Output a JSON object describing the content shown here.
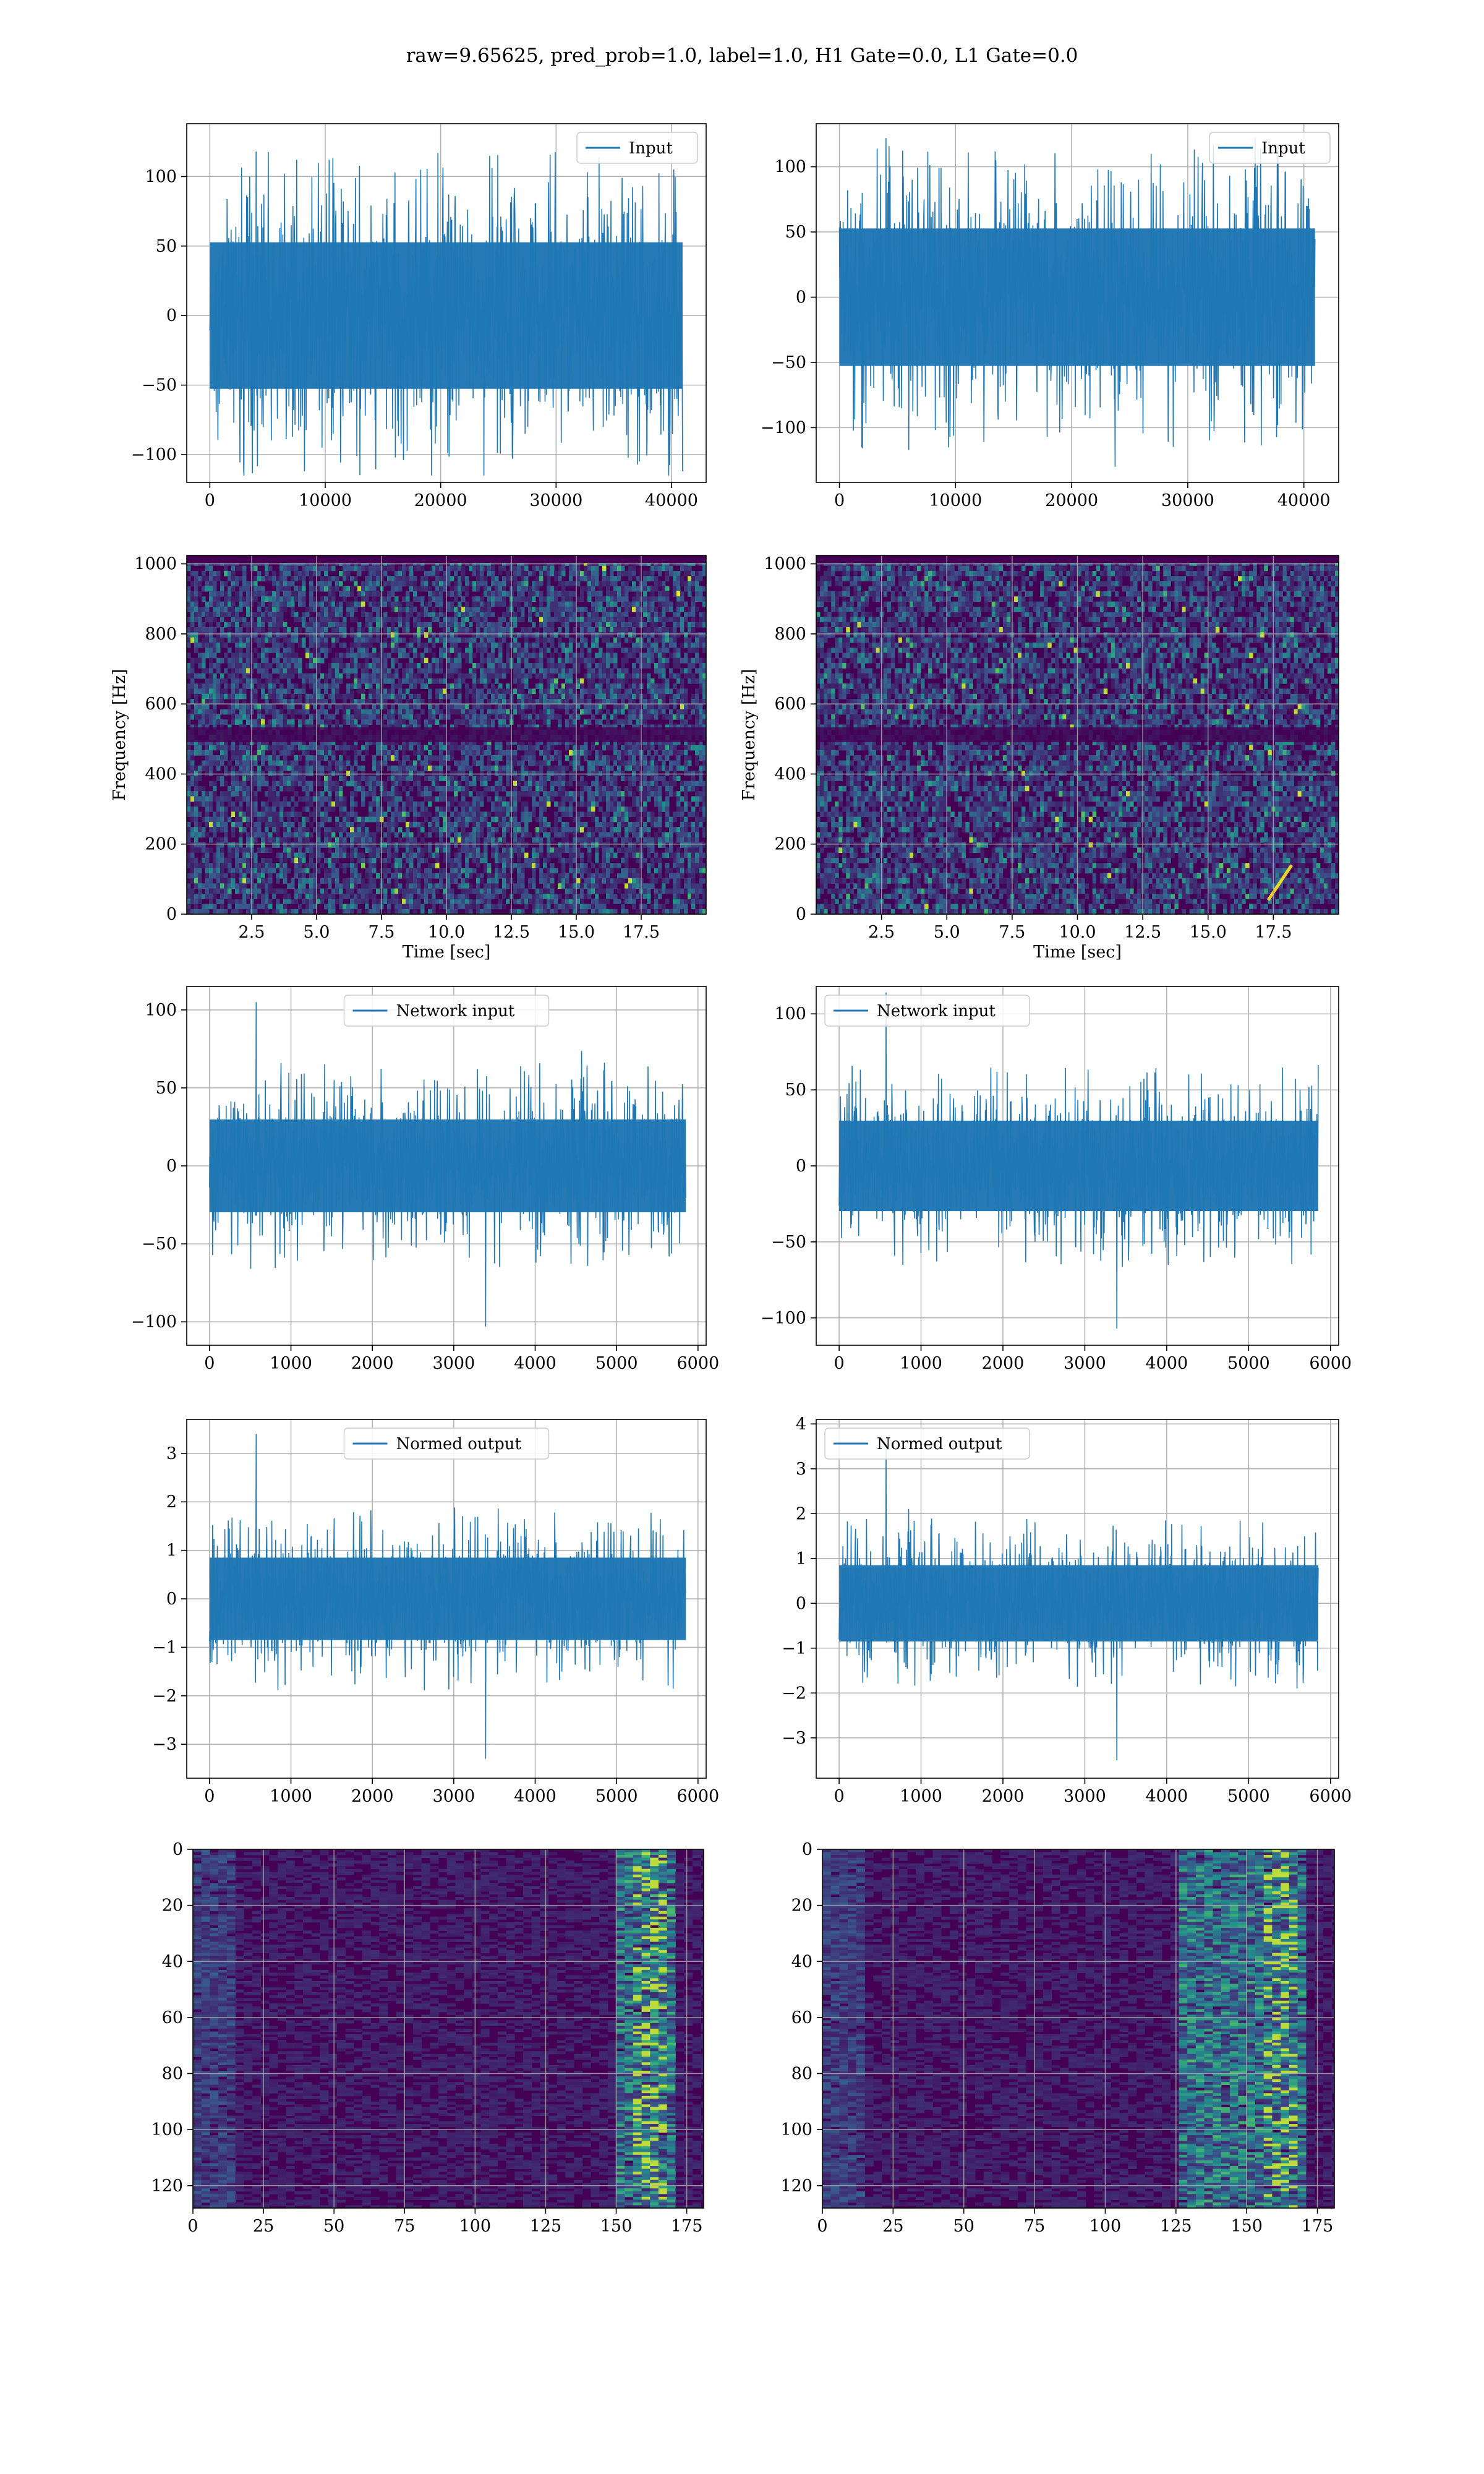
{
  "figure_title": "raw=9.65625, pred_prob=1.0, label=1.0, H1 Gate=0.0, L1 Gate=0.0",
  "colors": {
    "line": "#1f77b4",
    "heat_low": "#440154",
    "heat_mid": "#21918c",
    "heat_high": "#fde725",
    "grid": "#b0b0b0"
  },
  "chart_data": [
    {
      "type": "line",
      "legend": "Input",
      "legend_loc": "upper right",
      "xlim": [
        -2000,
        43000
      ],
      "ylim": [
        -120,
        138
      ],
      "xticks": [
        0,
        10000,
        20000,
        30000,
        40000
      ],
      "yticks": [
        -100,
        -50,
        0,
        50,
        100
      ],
      "signal": {
        "x_range": [
          0,
          40960
        ],
        "core_amplitude": 62,
        "peak_max": 118,
        "peak_min": -115
      },
      "grid": true,
      "xlabel": "",
      "ylabel": ""
    },
    {
      "type": "line",
      "legend": "Input",
      "legend_loc": "upper right",
      "xlim": [
        -2000,
        43000
      ],
      "ylim": [
        -142,
        133
      ],
      "xticks": [
        0,
        10000,
        20000,
        30000,
        40000
      ],
      "yticks": [
        -100,
        -50,
        0,
        50,
        100
      ],
      "signal": {
        "x_range": [
          0,
          40960
        ],
        "core_amplitude": 62,
        "peak_max": 122,
        "peak_min": -130
      },
      "grid": true,
      "xlabel": "",
      "ylabel": ""
    },
    {
      "type": "heatmap",
      "xlim": [
        0,
        20
      ],
      "ylim": [
        0,
        1024
      ],
      "xticks": [
        2.5,
        5.0,
        7.5,
        10.0,
        12.5,
        15.0,
        17.5
      ],
      "xtick_labels": [
        "2.5",
        "5.0",
        "7.5",
        "10.0",
        "12.5",
        "15.0",
        "17.5"
      ],
      "yticks": [
        0,
        200,
        400,
        600,
        800,
        1000
      ],
      "xlabel": "Time [sec]",
      "ylabel": "Frequency [Hz]",
      "grid": true,
      "band_hz": 512
    },
    {
      "type": "heatmap",
      "xlim": [
        0,
        20
      ],
      "ylim": [
        0,
        1024
      ],
      "xticks": [
        2.5,
        5.0,
        7.5,
        10.0,
        12.5,
        15.0,
        17.5
      ],
      "xtick_labels": [
        "2.5",
        "5.0",
        "7.5",
        "10.0",
        "12.5",
        "15.0",
        "17.5"
      ],
      "yticks": [
        0,
        200,
        400,
        600,
        800,
        1000
      ],
      "xlabel": "Time [sec]",
      "ylabel": "Frequency [Hz]",
      "grid": true,
      "band_hz": 512,
      "chirp": {
        "t": [
          17.3,
          18.2
        ],
        "f": [
          40,
          140
        ]
      }
    },
    {
      "type": "line",
      "legend": "Network input",
      "legend_loc": "upper center",
      "xlim": [
        -280,
        6100
      ],
      "ylim": [
        -115,
        115
      ],
      "xticks": [
        0,
        1000,
        2000,
        3000,
        4000,
        5000,
        6000
      ],
      "yticks": [
        -100,
        -50,
        0,
        50,
        100
      ],
      "signal": {
        "x_range": [
          0,
          5850
        ],
        "core_amplitude": 35,
        "peak_max": 105,
        "peak_min": -103
      },
      "grid": true,
      "xlabel": "",
      "ylabel": ""
    },
    {
      "type": "line",
      "legend": "Network input",
      "legend_loc": "upper left",
      "xlim": [
        -280,
        6100
      ],
      "ylim": [
        -118,
        118
      ],
      "xticks": [
        0,
        1000,
        2000,
        3000,
        4000,
        5000,
        6000
      ],
      "yticks": [
        -100,
        -50,
        0,
        50,
        100
      ],
      "signal": {
        "x_range": [
          0,
          5850
        ],
        "core_amplitude": 35,
        "peak_max": 114,
        "peak_min": -107
      },
      "grid": true,
      "xlabel": "",
      "ylabel": ""
    },
    {
      "type": "line",
      "legend": "Normed output",
      "legend_loc": "upper center",
      "xlim": [
        -280,
        6100
      ],
      "ylim": [
        -3.7,
        3.7
      ],
      "xticks": [
        0,
        1000,
        2000,
        3000,
        4000,
        5000,
        6000
      ],
      "yticks": [
        -3,
        -2,
        -1,
        0,
        1,
        2,
        3
      ],
      "signal": {
        "x_range": [
          0,
          5850
        ],
        "core_amplitude": 1.0,
        "peak_max": 3.4,
        "peak_min": -3.3
      },
      "grid": true,
      "xlabel": "",
      "ylabel": ""
    },
    {
      "type": "line",
      "legend": "Normed output",
      "legend_loc": "upper left",
      "xlim": [
        -280,
        6100
      ],
      "ylim": [
        -3.9,
        4.1
      ],
      "xticks": [
        0,
        1000,
        2000,
        3000,
        4000,
        5000,
        6000
      ],
      "yticks": [
        -3,
        -2,
        -1,
        0,
        1,
        2,
        3,
        4
      ],
      "signal": {
        "x_range": [
          0,
          5850
        ],
        "core_amplitude": 1.0,
        "peak_max": 3.65,
        "peak_min": -3.5
      },
      "grid": true,
      "xlabel": "",
      "ylabel": ""
    },
    {
      "type": "heatmap",
      "xlim": [
        0,
        181
      ],
      "ylim": [
        128,
        0
      ],
      "xticks": [
        0,
        25,
        50,
        75,
        100,
        125,
        150,
        175
      ],
      "yticks": [
        0,
        20,
        40,
        60,
        80,
        100,
        120
      ],
      "grid": true,
      "xlabel": "",
      "ylabel": "",
      "hot_columns": [
        150,
        170
      ]
    },
    {
      "type": "heatmap",
      "xlim": [
        0,
        181
      ],
      "ylim": [
        128,
        0
      ],
      "xticks": [
        0,
        25,
        50,
        75,
        100,
        125,
        150,
        175
      ],
      "yticks": [
        0,
        20,
        40,
        60,
        80,
        100,
        120
      ],
      "grid": true,
      "xlabel": "",
      "ylabel": "",
      "hot_columns": [
        125,
        170
      ]
    }
  ]
}
